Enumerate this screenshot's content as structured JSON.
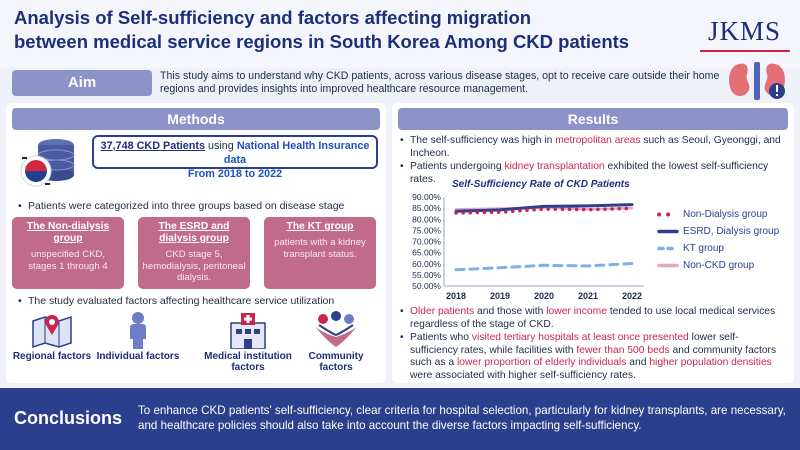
{
  "header": {
    "title_line1": "Analysis of Self-sufficiency and factors affecting migration",
    "title_line2": "between medical service regions in South Korea Among CKD patients",
    "logo": "JKMS"
  },
  "aim": {
    "label": "Aim",
    "text": "This study aims to understand why CKD patients, across various disease stages, opt to receive care outside their home regions and provides insights into improved healthcare resource management."
  },
  "methods": {
    "heading": "Methods",
    "cohort_count": "37,748 CKD Patients",
    "cohort_using": "using",
    "cohort_source": "National Health Insurance data",
    "cohort_period": "From 2018 to 2022",
    "bullet1": "Patients were categorized into three groups based on disease stage",
    "groups": [
      {
        "title": "The Non-dialysis group",
        "desc": "unspecified CKD, stages 1 through 4"
      },
      {
        "title": "The ESRD and dialysis group",
        "desc": "CKD stage 5, hemodialysis, peritoneal dialysis."
      },
      {
        "title": "The KT group",
        "desc": "patients with a kidney transplant status."
      }
    ],
    "bullet2": "The study evaluated factors affecting healthcare service utilization",
    "factors": [
      {
        "label": "Regional factors"
      },
      {
        "label": "Individual factors"
      },
      {
        "label": "Medical institution factors"
      },
      {
        "label": "Community factors"
      }
    ]
  },
  "results": {
    "heading": "Results",
    "b1_pre": "The self-sufficiency was high in",
    "b1_hl": "metropolitan areas",
    "b1_post": "such as Seoul, Gyeonggi, and Incheon.",
    "b2_pre": "Patients undergoing",
    "b2_hl": "kidney transplantation",
    "b2_post": "exhibited the lowest self-sufficiency rates.",
    "b3_hl1": "Older patients",
    "b3_mid": "and those with",
    "b3_hl2": "lower income",
    "b3_post": "tended to use local medical services regardless of the stage of CKD.",
    "b4_pre": "Patients who",
    "b4_hl1": "visited tertiary hospitals at least once presented",
    "b4_mid1": "lower self-sufficiency rates, while facilities with",
    "b4_hl2": "fewer than 500 beds",
    "b4_mid2": "and community factors such as a",
    "b4_hl3": "lower proportion of elderly individuals",
    "b4_mid3": "and",
    "b4_hl4": "higher population densities",
    "b4_post": "were associated with higher self-sufficiency rates."
  },
  "chart_data": {
    "type": "line",
    "title": "Self-Sufficiency Rate of CKD Patients",
    "x": [
      "2018",
      "2019",
      "2020",
      "2021",
      "2022"
    ],
    "yticks": [
      "90.00%",
      "85.00%",
      "80.00%",
      "75.00%",
      "70.00%",
      "65.00%",
      "60.00%",
      "55.00%",
      "50.00%"
    ],
    "ylim": [
      50,
      90
    ],
    "series": [
      {
        "name": "Non-Dialysis group",
        "values": [
          82.8,
          83.2,
          84.6,
          84.3,
          84.9
        ],
        "color": "#c9254f",
        "style": "dots"
      },
      {
        "name": "ESRD, Dialysis group",
        "values": [
          83.6,
          84.2,
          85.8,
          86.0,
          86.6
        ],
        "color": "#2c3f8c",
        "style": "solid"
      },
      {
        "name": "KT group",
        "values": [
          57.3,
          58.2,
          59.3,
          59.0,
          60.1
        ],
        "color": "#7fb0e6",
        "style": "dashed"
      },
      {
        "name": "Non-CKD group",
        "values": [
          84.4,
          84.8,
          85.2,
          84.5,
          85.0
        ],
        "color": "#e3a7bd",
        "style": "solid"
      }
    ]
  },
  "conclusion": {
    "label": "Conclusions",
    "text": "To enhance CKD patients' self-sufficiency, clear criteria for hospital selection, particularly for kidney transplants, are necessary, and healthcare policies should also take into account the diverse factors impacting self-sufficiency."
  }
}
